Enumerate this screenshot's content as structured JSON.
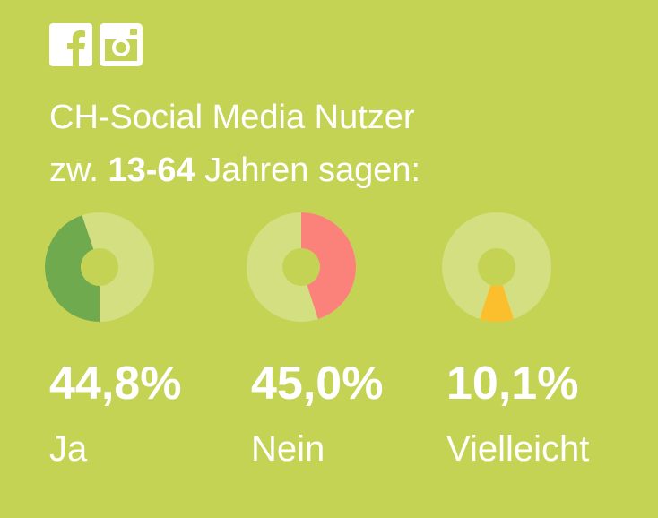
{
  "social_icons": [
    {
      "name": "facebook-icon"
    },
    {
      "name": "instagram-icon"
    }
  ],
  "headline": {
    "line1": "CH-Social Media Nutzer",
    "line2_prefix": "zw. ",
    "line2_bold": "13-64",
    "line2_suffix": " Jahren sagen:"
  },
  "colors": {
    "background": "#c5d354",
    "track": "#d3df80",
    "ja": "#6faa4f",
    "nein": "#fb827b",
    "vielleicht": "#fbbe2c"
  },
  "chart_data": {
    "type": "pie",
    "series": [
      {
        "name": "Ja",
        "value": 44.8,
        "label": "44,8%",
        "color": "#6faa4f"
      },
      {
        "name": "Nein",
        "value": 45.0,
        "label": "45,0%",
        "color": "#fb827b"
      },
      {
        "name": "Vielleicht",
        "value": 10.1,
        "label": "10,1%",
        "color": "#fbbe2c"
      }
    ]
  }
}
